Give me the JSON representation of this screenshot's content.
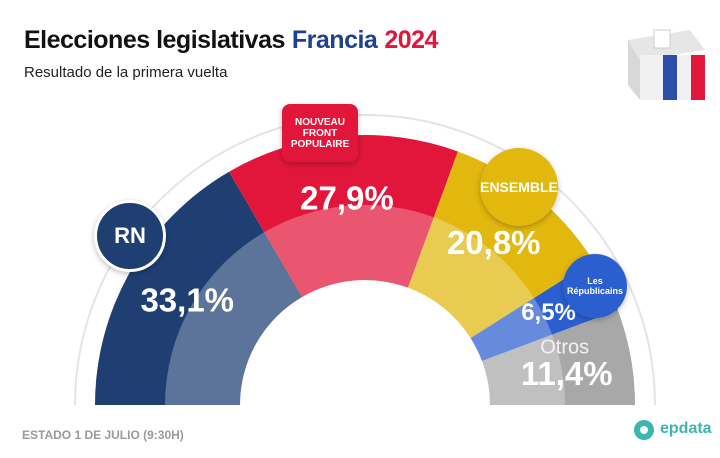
{
  "chart_data": {
    "type": "semi-donut",
    "title": [
      "Elecciones legislativas",
      "Francia",
      "2024"
    ],
    "subtitle": "Resultado de la primera vuelta",
    "categories": [
      "RN",
      "NOUVEAU FRONT POPULAIRE",
      "ENSEMBLE",
      "Les Républicains",
      "Otros"
    ],
    "values": [
      33.1,
      27.9,
      20.8,
      6.5,
      11.4
    ],
    "value_labels": [
      "33,1%",
      "27,9%",
      "20,8%",
      "6,5%",
      "11,4%"
    ],
    "colors": [
      "#1f3f73",
      "#e2163a",
      "#e2b70e",
      "#2b5fcf",
      "#a8a8a8"
    ],
    "footnote": "ESTADO 1 DE JULIO (9:30H)",
    "source": "epdata"
  }
}
